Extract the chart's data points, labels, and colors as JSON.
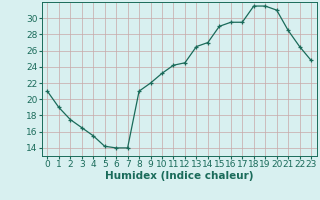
{
  "x": [
    0,
    1,
    2,
    3,
    4,
    5,
    6,
    7,
    8,
    9,
    10,
    11,
    12,
    13,
    14,
    15,
    16,
    17,
    18,
    19,
    20,
    21,
    22,
    23
  ],
  "y": [
    21.0,
    19.0,
    17.5,
    16.5,
    15.5,
    14.2,
    14.0,
    14.0,
    21.0,
    22.0,
    23.2,
    24.2,
    24.5,
    26.5,
    27.0,
    29.0,
    29.5,
    29.5,
    31.5,
    31.5,
    31.0,
    28.5,
    26.5,
    24.8
  ],
  "line_color": "#1a6b5a",
  "marker": "+",
  "marker_size": 3,
  "bg_color": "#d8f0f0",
  "grid_color": "#c8a8a8",
  "xlabel": "Humidex (Indice chaleur)",
  "xlim": [
    -0.5,
    23.5
  ],
  "ylim": [
    13.0,
    32.0
  ],
  "yticks": [
    14,
    16,
    18,
    20,
    22,
    24,
    26,
    28,
    30
  ],
  "xticks": [
    0,
    1,
    2,
    3,
    4,
    5,
    6,
    7,
    8,
    9,
    10,
    11,
    12,
    13,
    14,
    15,
    16,
    17,
    18,
    19,
    20,
    21,
    22,
    23
  ],
  "tick_fontsize": 6.5,
  "xlabel_fontsize": 7.5
}
